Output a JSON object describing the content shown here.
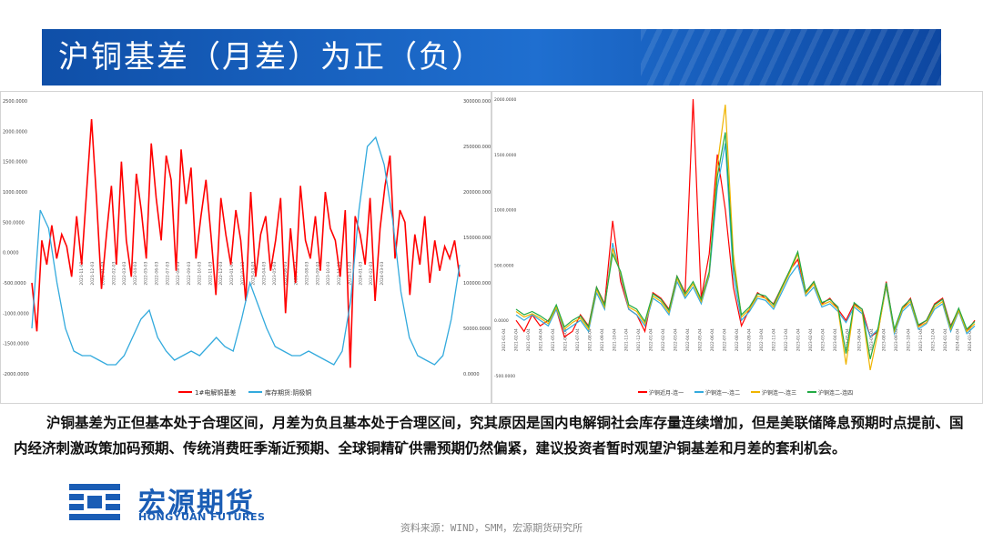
{
  "header": {
    "title": "沪铜基差（月差）为正（负）"
  },
  "paragraph": "沪铜基差为正但基本处于合理区间，月差为负且基本处于合理区间，究其原因是国内电解铜社会库存量连续增加，但是美联储降息预期时点提前、国内经济刺激政策加码预期、传统消费旺季渐近预期、全球铜精矿供需预期仍然偏紧，建议投资者暂时观望沪铜基差和月差的套利机会。",
  "logo": {
    "cn": "宏源期货",
    "en": "HONGYUAN FUTURES"
  },
  "source": "资料来源：WIND，SMM，宏源期货研究所",
  "colors": {
    "red": "#ff0000",
    "blue": "#33aadd",
    "yellow": "#f0b400",
    "green": "#22aa44",
    "header": "#1f6fd0"
  },
  "chart_data": [
    {
      "type": "line",
      "title": "",
      "ylim_left": [
        -2000,
        2500
      ],
      "ylim_right": [
        0,
        300000
      ],
      "y_ticks_left": [
        "2500.0000",
        "2000.0000",
        "1500.0000",
        "1000.0000",
        "500.0000",
        "0.0000",
        "-500.0000",
        "-1000.0000",
        "-1500.0000",
        "-2000.0000"
      ],
      "y_ticks_right": [
        "300000.0000",
        "250000.0000",
        "200000.0000",
        "150000.0000",
        "100000.0000",
        "50000.0000",
        "0.0000"
      ],
      "x_ticks": [
        "2021-11-03",
        "2021-12-03",
        "2022-01-03",
        "2022-02-03",
        "2022-03-03",
        "2022-04-03",
        "2022-05-03",
        "2022-06-03",
        "2022-07-03",
        "2022-08-03",
        "2022-09-03",
        "2022-10-03",
        "2022-11-03",
        "2022-12-03",
        "2023-01-03",
        "2023-02-03",
        "2023-03-03",
        "2023-04-03",
        "2023-05-03",
        "2023-06-03",
        "2023-07-03",
        "2023-08-03",
        "2023-09-03",
        "2023-10-03",
        "2023-11-03",
        "2023-12-03",
        "2024-01-03",
        "2024-02-03",
        "2024-03-03"
      ],
      "series": [
        {
          "name": "1#电解铜基差",
          "axis": "left",
          "values": [
            -500,
            -1300,
            200,
            -200,
            450,
            -100,
            300,
            100,
            -400,
            600,
            -200,
            1000,
            2200,
            900,
            -600,
            300,
            1100,
            -200,
            1500,
            200,
            -400,
            1300,
            700,
            -100,
            1800,
            900,
            200,
            1600,
            1200,
            -300,
            1700,
            800,
            1400,
            -100,
            600,
            1200,
            300,
            -700,
            900,
            300,
            -200,
            700,
            200,
            -800,
            1000,
            -400,
            300,
            600,
            -300,
            200,
            900,
            -1000,
            400,
            -500,
            1100,
            200,
            -100,
            600,
            -300,
            1000,
            400,
            200,
            -400,
            700,
            -1900,
            600,
            300,
            -200,
            900,
            -800,
            400,
            1100,
            1600,
            -100,
            700,
            500,
            -700,
            300,
            -200,
            600,
            -500,
            200,
            -300,
            100,
            -100,
            200,
            -400
          ]
        },
        {
          "name": "库存期货:阴极铜",
          "axis": "right",
          "values": [
            50000,
            180000,
            160000,
            100000,
            50000,
            25000,
            20000,
            20000,
            15000,
            10000,
            10000,
            20000,
            40000,
            60000,
            70000,
            40000,
            25000,
            15000,
            20000,
            25000,
            20000,
            30000,
            40000,
            30000,
            25000,
            60000,
            100000,
            75000,
            50000,
            30000,
            25000,
            20000,
            20000,
            25000,
            20000,
            15000,
            10000,
            25000,
            80000,
            180000,
            250000,
            260000,
            230000,
            170000,
            90000,
            40000,
            20000,
            15000,
            10000,
            20000,
            60000,
            120000
          ]
        }
      ],
      "legend": "bottom"
    },
    {
      "type": "line",
      "title": "",
      "ylim": [
        -500,
        2000
      ],
      "y_ticks": [
        "2000.0000",
        "1500.0000",
        "1000.0000",
        "500.0000",
        "0.0000",
        "-500.0000"
      ],
      "x_ticks": [
        "2021-01-04",
        "2021-02-04",
        "2021-03-04",
        "2021-04-04",
        "2021-05-04",
        "2021-06-04",
        "2021-07-04",
        "2021-08-04",
        "2021-09-04",
        "2021-10-04",
        "2021-11-04",
        "2021-12-04",
        "2022-01-04",
        "2022-02-04",
        "2022-03-04",
        "2022-04-04",
        "2022-05-04",
        "2022-06-04",
        "2022-07-04",
        "2022-08-04",
        "2022-09-04",
        "2022-10-04",
        "2022-11-04",
        "2022-12-04",
        "2023-01-04",
        "2023-02-04",
        "2023-03-04",
        "2023-04-04",
        "2023-05-04",
        "2023-06-04",
        "2023-07-04",
        "2023-08-04",
        "2023-09-04",
        "2023-10-04",
        "2023-11-04",
        "2023-12-04",
        "2024-01-04",
        "2024-02-04",
        "2024-03-04"
      ],
      "series": [
        {
          "name": "沪铜近月-连一",
          "values": [
            0,
            -100,
            50,
            -50,
            0,
            100,
            -150,
            -100,
            50,
            -50,
            300,
            150,
            900,
            350,
            100,
            50,
            -100,
            250,
            200,
            100,
            400,
            250,
            2000,
            200,
            600,
            1500,
            1000,
            300,
            -50,
            100,
            250,
            200,
            150,
            300,
            450,
            550,
            250,
            350,
            150,
            200,
            100,
            0,
            150,
            100,
            -150,
            -100,
            350,
            -100,
            100,
            200,
            -50,
            0,
            150,
            200,
            -50,
            100,
            -100,
            0
          ]
        },
        {
          "name": "沪铜连一-连二",
          "values": [
            50,
            0,
            50,
            0,
            -50,
            100,
            -100,
            -50,
            0,
            -100,
            250,
            100,
            700,
            400,
            100,
            50,
            -50,
            200,
            150,
            50,
            350,
            200,
            300,
            150,
            400,
            1200,
            1600,
            400,
            0,
            80,
            200,
            180,
            100,
            250,
            400,
            500,
            220,
            300,
            120,
            150,
            80,
            -20,
            120,
            60,
            -150,
            -80,
            300,
            -120,
            80,
            150,
            -80,
            -30,
            100,
            150,
            -100,
            80,
            -120,
            -50
          ]
        },
        {
          "name": "沪铜连一-连三",
          "values": [
            80,
            30,
            60,
            20,
            -30,
            120,
            -80,
            -20,
            20,
            -80,
            280,
            120,
            650,
            420,
            120,
            80,
            -30,
            220,
            170,
            70,
            380,
            220,
            330,
            170,
            420,
            1400,
            1950,
            600,
            30,
            100,
            220,
            200,
            120,
            280,
            430,
            600,
            240,
            330,
            140,
            170,
            100,
            -400,
            140,
            80,
            -450,
            -100,
            320,
            -100,
            100,
            170,
            -60,
            -20,
            120,
            170,
            -80,
            90,
            -100,
            -30
          ]
        },
        {
          "name": "沪铜连二-连四",
          "values": [
            100,
            50,
            80,
            40,
            -10,
            140,
            -60,
            0,
            40,
            -60,
            300,
            140,
            600,
            440,
            140,
            100,
            -10,
            240,
            190,
            90,
            400,
            240,
            350,
            190,
            440,
            1300,
            1700,
            500,
            50,
            120,
            240,
            220,
            140,
            300,
            450,
            620,
            260,
            350,
            160,
            190,
            120,
            -300,
            160,
            100,
            -350,
            -60,
            340,
            -80,
            120,
            190,
            -40,
            0,
            140,
            190,
            -60,
            110,
            -80,
            -10
          ]
        }
      ],
      "legend": "bottom"
    }
  ]
}
